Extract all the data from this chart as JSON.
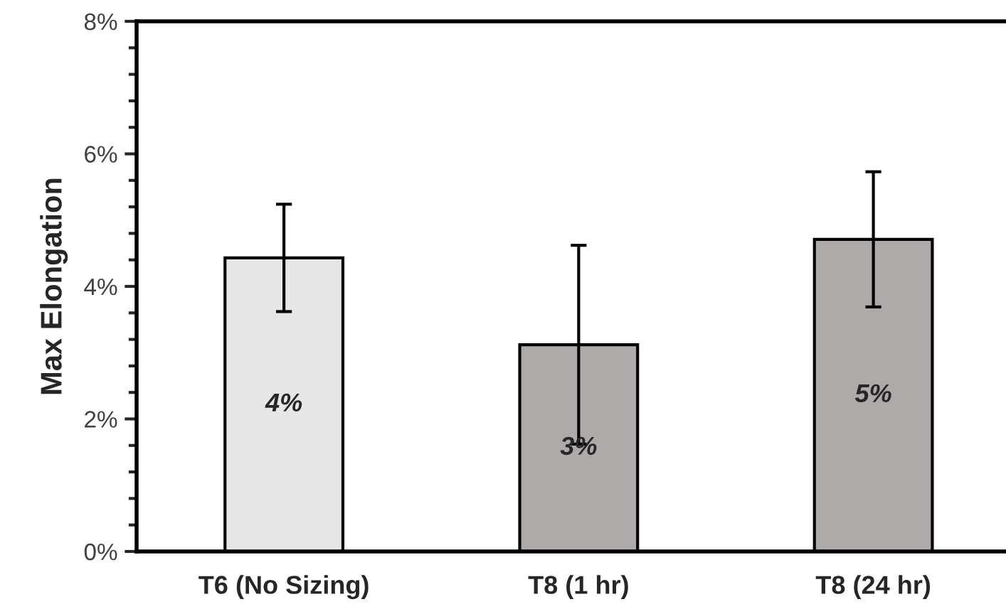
{
  "chart_data": {
    "type": "bar",
    "ylabel": "Max Elongation",
    "categories": [
      "T6 (No Sizing)",
      "T8 (1 hr)",
      "T8 (24 hr)"
    ],
    "values": [
      4.43,
      3.12,
      4.71
    ],
    "colors": [
      "#e6e6e6",
      "#aeaaaa",
      "#aeaaaa"
    ],
    "errors": [
      0.81,
      1.5,
      1.02
    ],
    "value_labels": [
      "4%",
      "3%",
      "5%"
    ],
    "ylim": [
      0,
      8
    ],
    "yticks": [
      {
        "value": 0,
        "label": "0%"
      },
      {
        "value": 2,
        "label": "2%"
      },
      {
        "value": 4,
        "label": "4%"
      },
      {
        "value": 6,
        "label": "6%"
      },
      {
        "value": 8,
        "label": "8%"
      }
    ],
    "grid": false,
    "legend": false
  }
}
